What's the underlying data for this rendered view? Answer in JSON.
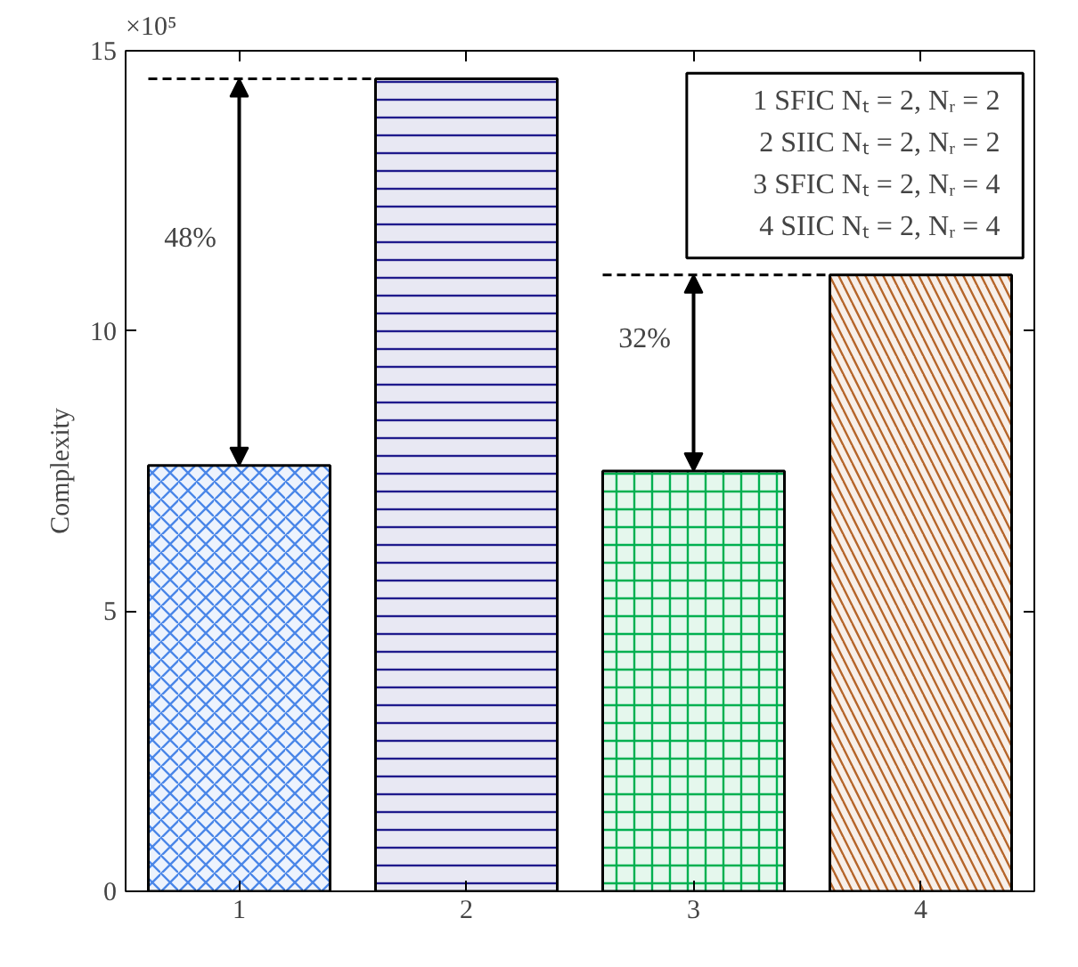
{
  "chart_data": {
    "type": "bar",
    "ylabel": "Complexity",
    "categories": [
      "1",
      "2",
      "3",
      "4"
    ],
    "values": [
      7.6,
      14.5,
      7.5,
      11.0
    ],
    "colors": [
      "#4a86e8",
      "#1f1a8c",
      "#00b050",
      "#b5652a"
    ],
    "ylim": [
      0,
      15
    ],
    "yticks": [
      0,
      5,
      10,
      15
    ],
    "grid": false,
    "ref_lines": [
      {
        "axis": "y",
        "value": 14.5,
        "line_style": "dashed",
        "color": "#000000"
      },
      {
        "axis": "y",
        "value": 11.0,
        "line_style": "dashed",
        "color": "#000000"
      }
    ],
    "annotations": [
      "×10⁵",
      "48%",
      "32%",
      "1  SFIC Nₜ = 2, Nᵣ = 2",
      "2  SIIC Nₜ = 2, Nᵣ = 2",
      "3  SFIC Nₜ = 2, Nᵣ = 4",
      "4  SIIC Nₜ = 2, Nᵣ = 4"
    ]
  }
}
